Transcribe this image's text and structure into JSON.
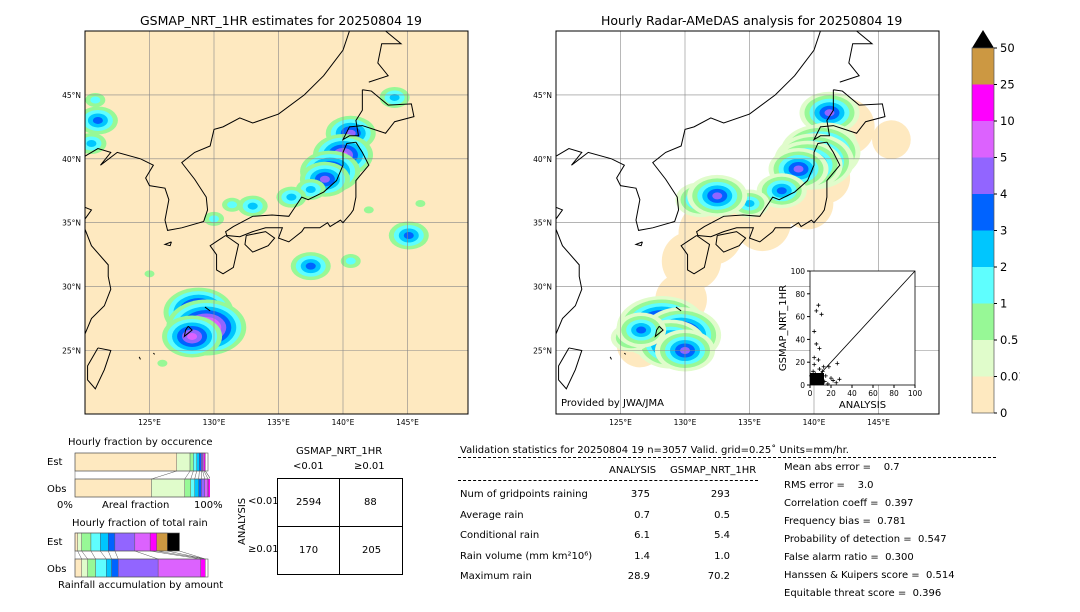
{
  "left_map": {
    "title": "GSMAP_NRT_1HR estimates for 20250804 19"
  },
  "right_map": {
    "title": "Hourly Radar-AMeDAS analysis for 20250804 19",
    "credit": "Provided by JWA/JMA"
  },
  "map_ticks": {
    "lon": [
      "125°E",
      "130°E",
      "135°E",
      "140°E",
      "145°E"
    ],
    "lat": [
      "45°N",
      "40°N",
      "35°N",
      "30°N",
      "25°N"
    ]
  },
  "colorbar": {
    "labels": [
      "0",
      "0.01",
      "0.5",
      "1",
      "2",
      "3",
      "4",
      "5",
      "10",
      "25",
      "50"
    ],
    "colors": [
      "#fee9c0",
      "#e0fccb",
      "#97f896",
      "#5ffefe",
      "#00c6fe",
      "#0063ff",
      "#9265ff",
      "#dc62fe",
      "#fe00fe",
      "#cc9842"
    ],
    "extend_color": "#000000"
  },
  "occurrence": {
    "title": "Hourly fraction by occurence",
    "est_label": "Est",
    "obs_label": "Obs",
    "xmin": "0%",
    "xlabel": "Areal fraction",
    "xmax": "100%",
    "est": [
      0.765,
      0.1,
      0.025,
      0.025,
      0.02,
      0.015,
      0.01,
      0.01,
      0.01,
      0
    ],
    "obs": [
      0.575,
      0.25,
      0.045,
      0.03,
      0.03,
      0.02,
      0.025,
      0.025,
      0.02,
      0
    ]
  },
  "total_rain": {
    "title": "Hourly fraction of total rain",
    "est_label": "Est",
    "obs_label": "Obs",
    "xlabel": "Rainfall accumulation by amount",
    "est": [
      0.02,
      0.03,
      0.07,
      0.07,
      0.06,
      0.05,
      0.15,
      0.115,
      0.05,
      0.08
    ],
    "obs": [
      0.05,
      0.045,
      0.06,
      0.08,
      0.04,
      0.05,
      0.3,
      0.32,
      0.035,
      0
    ]
  },
  "contingency": {
    "title": "GSMAP_NRT_1HR",
    "col_labels": [
      "<0.01",
      "≥0.01"
    ],
    "row_title": "ANALYSIS",
    "row_labels": [
      "<0.01",
      "≥0.01"
    ],
    "cells": [
      [
        "2594",
        "88"
      ],
      [
        "170",
        "205"
      ]
    ]
  },
  "stats": {
    "header": "Validation statistics for 20250804 19  n=3057 Valid. grid=0.25˚ Units=mm/hr.",
    "columns": [
      "ANALYSIS",
      "GSMAP_NRT_1HR"
    ],
    "rows": [
      {
        "label": "Num of gridpoints raining",
        "a": "375",
        "g": "293"
      },
      {
        "label": "Average rain",
        "a": "0.7",
        "g": "0.5"
      },
      {
        "label": "Conditional rain",
        "a": "6.1",
        "g": "5.4"
      },
      {
        "label": "Rain volume (mm km²10⁶)",
        "a": "1.4",
        "g": "1.0"
      },
      {
        "label": "Maximum rain",
        "a": "28.9",
        "g": "70.2"
      }
    ],
    "scores": [
      "Mean abs error =    0.7",
      "RMS error =    3.0",
      "Correlation coeff =  0.397",
      "Frequency bias =  0.781",
      "Probability of detection =  0.547",
      "False alarm ratio =  0.300",
      "Hanssen & Kuipers score =  0.514",
      "Equitable threat score =  0.396"
    ]
  },
  "chart_data": {
    "type": "scatter",
    "xlabel": "ANALYSIS",
    "ylabel": "GSMAP_NRT_1HR",
    "xlim": [
      0,
      100
    ],
    "ylim": [
      0,
      100
    ],
    "ticks": [
      "0",
      "20",
      "40",
      "60",
      "80",
      "100"
    ],
    "points": [
      [
        8,
        70
      ],
      [
        6,
        65
      ],
      [
        11,
        62
      ],
      [
        4,
        47
      ],
      [
        6,
        36
      ],
      [
        9,
        32
      ],
      [
        4,
        24
      ],
      [
        8,
        22
      ],
      [
        26,
        19
      ],
      [
        4,
        18
      ],
      [
        18,
        16
      ],
      [
        28,
        5
      ],
      [
        22,
        4
      ],
      [
        25,
        2
      ],
      [
        15,
        8
      ],
      [
        12,
        12
      ],
      [
        10,
        6
      ],
      [
        5,
        10
      ],
      [
        3,
        5
      ],
      [
        2,
        2
      ],
      [
        7,
        3
      ],
      [
        14,
        3
      ],
      [
        17,
        1
      ],
      [
        20,
        6
      ],
      [
        1,
        8
      ],
      [
        9,
        14
      ],
      [
        13,
        16
      ],
      [
        6,
        8
      ],
      [
        3,
        12
      ],
      [
        11,
        2
      ]
    ]
  }
}
